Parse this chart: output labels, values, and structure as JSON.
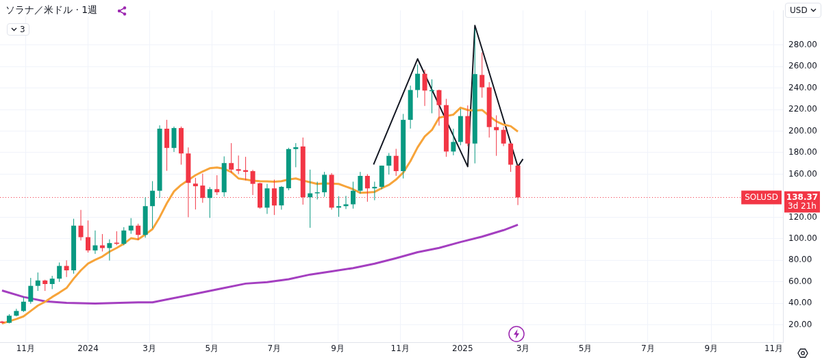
{
  "chart_data": {
    "type": "candlestick",
    "title": "ソラナ／米ドル · 1週",
    "x": [
      "2023-10-09",
      "2023-10-16",
      "2023-10-23",
      "2023-10-30",
      "2023-11-06",
      "2023-11-13",
      "2023-11-20",
      "2023-11-27",
      "2023-12-04",
      "2023-12-11",
      "2023-12-18",
      "2023-12-25",
      "2024-01-01",
      "2024-01-08",
      "2024-01-15",
      "2024-01-22",
      "2024-01-29",
      "2024-02-05",
      "2024-02-12",
      "2024-02-19",
      "2024-02-26",
      "2024-03-04",
      "2024-03-11",
      "2024-03-18",
      "2024-03-25",
      "2024-04-01",
      "2024-04-08",
      "2024-04-15",
      "2024-04-22",
      "2024-04-29",
      "2024-05-06",
      "2024-05-13",
      "2024-05-20",
      "2024-05-27",
      "2024-06-03",
      "2024-06-10",
      "2024-06-17",
      "2024-06-24",
      "2024-07-01",
      "2024-07-08",
      "2024-07-15",
      "2024-07-22",
      "2024-07-29",
      "2024-08-05",
      "2024-08-12",
      "2024-08-19",
      "2024-08-26",
      "2024-09-02",
      "2024-09-09",
      "2024-09-16",
      "2024-09-23",
      "2024-09-30",
      "2024-10-07",
      "2024-10-14",
      "2024-10-21",
      "2024-10-28",
      "2024-11-04",
      "2024-11-11",
      "2024-11-18",
      "2024-11-25",
      "2024-12-02",
      "2024-12-09",
      "2024-12-16",
      "2024-12-23",
      "2024-12-30",
      "2025-01-06",
      "2025-01-13",
      "2025-01-20",
      "2025-01-27",
      "2025-02-03",
      "2025-02-10",
      "2025-02-17",
      "2025-02-24"
    ],
    "ohlc": [
      [
        23.2,
        23.8,
        21.4,
        22
      ],
      [
        22,
        30,
        21.5,
        28.6
      ],
      [
        28.6,
        35,
        28,
        33
      ],
      [
        33,
        46,
        32,
        41.6
      ],
      [
        41.6,
        63.7,
        39.7,
        56.3
      ],
      [
        56.3,
        68.7,
        51.6,
        61.3
      ],
      [
        61.3,
        62,
        51.6,
        58
      ],
      [
        58,
        65.6,
        53.3,
        63
      ],
      [
        63,
        78,
        60,
        74.8
      ],
      [
        74.8,
        80,
        64.5,
        70.7
      ],
      [
        70.7,
        118.6,
        67.6,
        112.2
      ],
      [
        112.2,
        126.8,
        98.4,
        101.5
      ],
      [
        101.5,
        117,
        87.2,
        89.2
      ],
      [
        89.2,
        107.7,
        86,
        93.9
      ],
      [
        93.9,
        104.4,
        88.2,
        91.4
      ],
      [
        91.4,
        99.5,
        79.8,
        96
      ],
      [
        96.4,
        107,
        94,
        95.3
      ],
      [
        95.3,
        110.8,
        94,
        107.7
      ],
      [
        107.7,
        119.2,
        104.6,
        112.2
      ],
      [
        112.2,
        114,
        98.9,
        103.6
      ],
      [
        103.6,
        138.5,
        101,
        130.3
      ],
      [
        130.3,
        153.5,
        109.8,
        144.6
      ],
      [
        144.6,
        205.3,
        137.9,
        202.2
      ],
      [
        202.2,
        210.4,
        163.1,
        184.3
      ],
      [
        184.3,
        204.2,
        180.6,
        202.8
      ],
      [
        202.8,
        204.2,
        168.8,
        179.2
      ],
      [
        179.2,
        184.8,
        120,
        151.9
      ],
      [
        151.2,
        156.6,
        127.2,
        148.8
      ],
      [
        149.4,
        160.5,
        133.4,
        137.9
      ],
      [
        137.9,
        148,
        119.4,
        146.1
      ],
      [
        146.1,
        159,
        140.6,
        143.2
      ],
      [
        143.2,
        176.5,
        139.1,
        170.3
      ],
      [
        170.3,
        188.8,
        161.1,
        164.2
      ],
      [
        164.6,
        177.3,
        160,
        163.1
      ],
      [
        163.7,
        176.1,
        154.3,
        162.1
      ],
      [
        162.8,
        164,
        140.6,
        151
      ],
      [
        151.6,
        152,
        128,
        128.9
      ],
      [
        128.9,
        151,
        123.1,
        146.8
      ],
      [
        146.8,
        154.9,
        122.1,
        130.9
      ],
      [
        131,
        149,
        127,
        148.2
      ],
      [
        146.9,
        184.5,
        145,
        183.3
      ],
      [
        183.3,
        188.8,
        166.4,
        185
      ],
      [
        185.7,
        194,
        131.7,
        138.5
      ],
      [
        138.5,
        164.2,
        110.2,
        142.2
      ],
      [
        142.2,
        153,
        136.5,
        143.2
      ],
      [
        143.2,
        162.1,
        139,
        159.4
      ],
      [
        159.4,
        161,
        127,
        128.9
      ],
      [
        128.9,
        139.5,
        120.4,
        130.3
      ],
      [
        130.3,
        139.8,
        127.6,
        132
      ],
      [
        132,
        153,
        128,
        144.6
      ],
      [
        144.6,
        162.1,
        142,
        158.4
      ],
      [
        158.4,
        160,
        134.4,
        146.8
      ],
      [
        146.8,
        153,
        135.8,
        148.2
      ],
      [
        148.2,
        168,
        146,
        167.9
      ],
      [
        167.9,
        179.6,
        159.6,
        177
      ],
      [
        177,
        183.5,
        158.4,
        162.8
      ],
      [
        162.8,
        215.9,
        156,
        210.4
      ],
      [
        210.4,
        242.2,
        202.3,
        238.1
      ],
      [
        238.1,
        261.7,
        231,
        253.2
      ],
      [
        253.2,
        257,
        223.3,
        237.6
      ],
      [
        237,
        248,
        216.5,
        238
      ],
      [
        238,
        238.5,
        205,
        224.1
      ],
      [
        224.1,
        229.9,
        176.1,
        181
      ],
      [
        181,
        202.2,
        177.5,
        189.9
      ],
      [
        189.9,
        220.7,
        186.8,
        213.9
      ],
      [
        213.9,
        223.8,
        186,
        188.4
      ],
      [
        188.4,
        295,
        170,
        252.9
      ],
      [
        252.1,
        273,
        231,
        240.6
      ],
      [
        240.6,
        245.4,
        194,
        203.7
      ],
      [
        203.7,
        214.6,
        177,
        200.8
      ],
      [
        201.1,
        204,
        186,
        188.4
      ],
      [
        188.4,
        189,
        162.1,
        168.8
      ],
      [
        167.9,
        169,
        131.3,
        138.37
      ]
    ],
    "series": [
      {
        "type": "line",
        "color": "#f7a43a",
        "values": [
          21.4,
          23.5,
          25.5,
          28,
          33,
          38,
          41.5,
          46,
          50,
          54.3,
          63,
          70.7,
          77,
          80.5,
          83.5,
          88,
          91.5,
          95.4,
          100.5,
          99.5,
          104,
          109,
          120,
          133,
          144,
          150,
          154.5,
          159,
          162.5,
          165.5,
          166.2,
          165,
          162,
          156,
          155,
          153.9,
          153.5,
          153.3,
          153,
          153.5,
          155,
          156,
          154,
          152.5,
          150.9,
          151.4,
          151.2,
          150.9,
          148.5,
          146,
          142.6,
          143,
          143.5,
          147,
          150,
          155,
          161.5,
          172,
          184.8,
          195,
          201,
          212.4,
          213.9,
          215.3,
          221.7,
          219.5,
          219,
          219.6,
          214,
          209,
          206,
          204.5,
          199.5
        ]
      },
      {
        "type": "line",
        "color": "#a43fc0",
        "x": [
          "2023-10-09",
          "2023-10-30",
          "2023-11-20",
          "2023-12-11",
          "2024-01-08",
          "2024-02-19",
          "2024-03-04",
          "2024-03-25",
          "2024-04-15",
          "2024-05-13",
          "2024-06-03",
          "2024-06-24",
          "2024-07-15",
          "2024-08-05",
          "2024-08-26",
          "2024-09-16",
          "2024-10-07",
          "2024-10-28",
          "2024-11-18",
          "2024-12-09",
          "2024-12-30",
          "2025-01-20",
          "2025-02-10",
          "2025-02-24"
        ],
        "values": [
          52,
          46,
          42,
          40.5,
          39.9,
          41,
          41,
          45,
          49,
          54.3,
          58.4,
          59.8,
          62.5,
          66.8,
          69.7,
          72.8,
          76.9,
          82,
          87.5,
          91.5,
          97,
          102,
          108,
          113
        ]
      },
      {
        "type": "line",
        "color": "#131722",
        "x": [
          "2024-10-06",
          "2024-11-18",
          "2025-01-06",
          "2025-01-13",
          "2025-02-24",
          "2025-03-01"
        ],
        "values": [
          169,
          267,
          167,
          298,
          167,
          174
        ]
      }
    ],
    "xlim": [
      "2023-10-07",
      "2025-11-10"
    ],
    "xticks": [
      {
        "value": "2023-11",
        "label": "11月"
      },
      {
        "value": "2024-01",
        "label": "2024"
      },
      {
        "value": "2024-03",
        "label": "3月"
      },
      {
        "value": "2024-05",
        "label": "5月"
      },
      {
        "value": "2024-07",
        "label": "7月"
      },
      {
        "value": "2024-09",
        "label": "9月"
      },
      {
        "value": "2024-11",
        "label": "11月"
      },
      {
        "value": "2025-01",
        "label": "2025"
      },
      {
        "value": "2025-03",
        "label": "3月"
      },
      {
        "value": "2025-05",
        "label": "5月"
      },
      {
        "value": "2025-07",
        "label": "7月"
      },
      {
        "value": "2025-09",
        "label": "9月"
      },
      {
        "value": "2025-11",
        "label": "11月"
      }
    ],
    "ylim": [
      4,
      312
    ],
    "yticks": [
      {
        "value": 20,
        "label": "20.00"
      },
      {
        "value": 40,
        "label": "40.00"
      },
      {
        "value": 60,
        "label": "60.00"
      },
      {
        "value": 80,
        "label": "80.00"
      },
      {
        "value": 100,
        "label": "100.00"
      },
      {
        "value": 120,
        "label": "120.00"
      },
      {
        "value": 160,
        "label": "160.00"
      },
      {
        "value": 180,
        "label": "180.00"
      },
      {
        "value": 200,
        "label": "200.00"
      },
      {
        "value": 220,
        "label": "220.00"
      },
      {
        "value": 240,
        "label": "240.00"
      },
      {
        "value": 260,
        "label": "260.00"
      },
      {
        "value": 280,
        "label": "280.00"
      }
    ],
    "ref_lines": [
      {
        "axis": "y",
        "value": 138.37,
        "label": "SOLUSD",
        "color": "#f23645",
        "line_style": "dotted"
      }
    ],
    "annotations": [
      "USD",
      "3",
      "3d 21h",
      "138.37"
    ],
    "grid": true,
    "legend": false
  }
}
